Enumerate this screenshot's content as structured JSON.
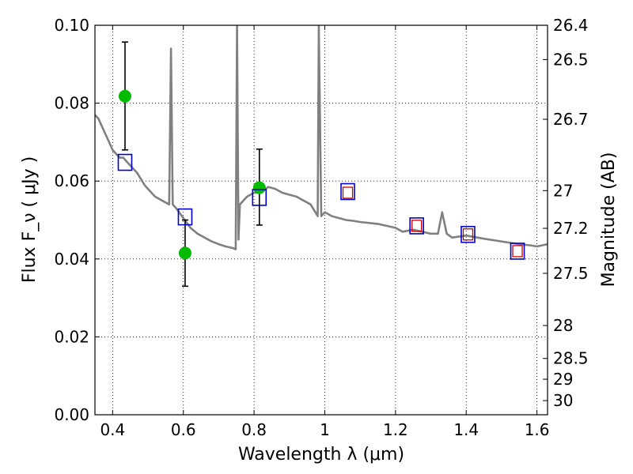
{
  "chart_data": {
    "type": "scatter",
    "xlabel": "Wavelength  λ (μm)",
    "ylabel": "Flux  F_ν  ( μJy )",
    "ylabel2": "Magnitude (AB)",
    "xlim": [
      0.35,
      1.63
    ],
    "ylim": [
      0,
      0.1
    ],
    "grid": true,
    "x_ticks": [
      0.4,
      0.6,
      0.8,
      1.0,
      1.2,
      1.4,
      1.6
    ],
    "x_tick_labels": [
      "0.4",
      "0.6",
      "0.8",
      "1",
      "1.2",
      "1.4",
      "1.6"
    ],
    "y_ticks": [
      0,
      0.02,
      0.04,
      0.06,
      0.08,
      0.1
    ],
    "y_tick_labels": [
      "0.00",
      "0.02",
      "0.04",
      "0.06",
      "0.08",
      "0.10"
    ],
    "mag_ticks": [
      26.4,
      26.5,
      26.7,
      27,
      27.2,
      27.5,
      28,
      28.5,
      29,
      30
    ],
    "mag_tick_labels": [
      "26.4",
      "26.5",
      "26.7",
      "27",
      "27.2",
      "27.5",
      "28",
      "28.5",
      "29",
      "30"
    ],
    "series": [
      {
        "kind": "spectrum",
        "color": "#808080",
        "x": [
          0.35,
          0.36,
          0.37,
          0.38,
          0.39,
          0.4,
          0.41,
          0.42,
          0.43,
          0.44,
          0.45,
          0.46,
          0.47,
          0.48,
          0.49,
          0.5,
          0.52,
          0.54,
          0.56,
          0.565,
          0.57,
          0.58,
          0.6,
          0.62,
          0.64,
          0.66,
          0.68,
          0.7,
          0.72,
          0.74,
          0.748,
          0.752,
          0.756,
          0.76,
          0.78,
          0.8,
          0.82,
          0.84,
          0.86,
          0.88,
          0.9,
          0.92,
          0.94,
          0.96,
          0.98,
          0.983,
          0.99,
          1.0,
          1.02,
          1.04,
          1.06,
          1.08,
          1.1,
          1.15,
          1.2,
          1.22,
          1.25,
          1.3,
          1.32,
          1.332,
          1.345,
          1.36,
          1.4,
          1.45,
          1.5,
          1.55,
          1.58,
          1.6,
          1.63
        ],
        "y": [
          0.077,
          0.076,
          0.074,
          0.072,
          0.07,
          0.068,
          0.067,
          0.066,
          0.066,
          0.065,
          0.064,
          0.063,
          0.062,
          0.0605,
          0.059,
          0.058,
          0.056,
          0.055,
          0.054,
          0.094,
          0.054,
          0.053,
          0.0505,
          0.048,
          0.0465,
          0.0455,
          0.0445,
          0.0438,
          0.0432,
          0.0428,
          0.0425,
          0.1,
          0.045,
          0.054,
          0.056,
          0.057,
          0.057,
          0.0585,
          0.058,
          0.057,
          0.0565,
          0.056,
          0.055,
          0.054,
          0.051,
          0.1,
          0.051,
          0.052,
          0.051,
          0.0505,
          0.05,
          0.0498,
          0.0495,
          0.049,
          0.048,
          0.047,
          0.0475,
          0.0465,
          0.0465,
          0.052,
          0.0465,
          0.0455,
          0.046,
          0.0452,
          0.0445,
          0.0438,
          0.0435,
          0.0432,
          0.0438
        ]
      },
      {
        "kind": "observed",
        "color": "#00bb00",
        "x": [
          0.435,
          0.605,
          0.815
        ],
        "y": [
          0.0818,
          0.0415,
          0.0583
        ],
        "yerr_low": [
          0.068,
          0.033,
          0.0487
        ],
        "yerr_high": [
          0.0957,
          0.05,
          0.0682
        ]
      },
      {
        "kind": "model_bands",
        "color": "#0000cc",
        "x": [
          0.435,
          0.605,
          0.815,
          1.065,
          1.26,
          1.405,
          1.545
        ],
        "y": [
          0.0648,
          0.0508,
          0.0558,
          0.0573,
          0.0485,
          0.0463,
          0.042
        ]
      },
      {
        "kind": "model_bands_inner",
        "color": "#cc0000",
        "x": [
          1.065,
          1.26,
          1.405,
          1.545
        ],
        "y": [
          0.057,
          0.0485,
          0.0463,
          0.042
        ]
      }
    ]
  }
}
